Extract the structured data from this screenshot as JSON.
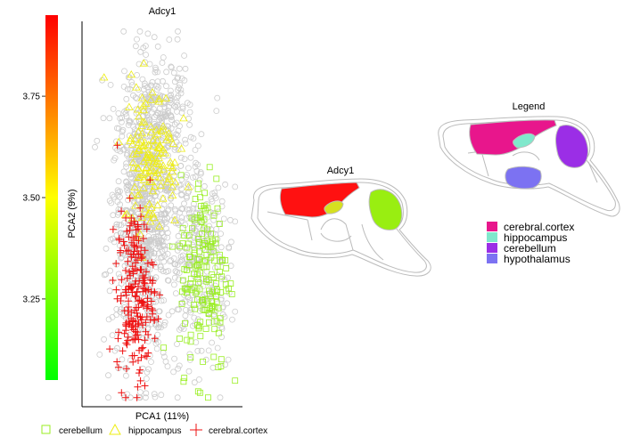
{
  "chart_data": [
    {
      "type": "scatter",
      "title": "Adcy1",
      "xlabel": "PCA1 (11%)",
      "ylabel": "PCA2 (9%)",
      "xlim": [
        -1,
        1
      ],
      "ylim": [
        3.03,
        3.95
      ],
      "y_ticks": [
        3.25,
        3.5,
        3.75
      ],
      "y_tick_labels": [
        "3.25",
        "3.50",
        "3.75"
      ],
      "color_scale": {
        "colors": [
          "#00ff00",
          "#ffff00",
          "#ff0000"
        ],
        "range": [
          3.05,
          3.95
        ]
      },
      "background_points": {
        "color": "#cccccc",
        "marker": "circle",
        "count": 1300
      },
      "series": [
        {
          "name": "cerebellum",
          "marker": "square",
          "color": "#99ee22",
          "clusters": [
            {
              "x_center": 0.55,
              "y_center": 3.35,
              "x_spread": 0.16,
              "y_spread": 0.12,
              "count": 170
            }
          ]
        },
        {
          "name": "hippocampus",
          "marker": "triangle",
          "color": "#eeee11",
          "clusters": [
            {
              "x_center": -0.15,
              "y_center": 3.63,
              "x_spread": 0.18,
              "y_spread": 0.09,
              "count": 140
            }
          ]
        },
        {
          "name": "cerebral.cortex",
          "marker": "plus",
          "color": "#ee1111",
          "clusters": [
            {
              "x_center": -0.35,
              "y_center": 3.3,
              "x_spread": 0.12,
              "y_spread": 0.1,
              "count": 210
            }
          ]
        }
      ]
    },
    {
      "type": "anatomical_map",
      "title": "Adcy1",
      "regions": [
        {
          "name": "cerebral.cortex",
          "color": "#ff1111"
        },
        {
          "name": "hippocampus",
          "color": "#d6e020"
        },
        {
          "name": "cerebellum",
          "color": "#99ee11"
        }
      ]
    },
    {
      "type": "anatomical_map",
      "title": "Legend",
      "regions": [
        {
          "name": "cerebral.cortex",
          "color": "#e8168c"
        },
        {
          "name": "hippocampus",
          "color": "#80e8cc"
        },
        {
          "name": "cerebellum",
          "color": "#9b2ee6"
        },
        {
          "name": "hypothalamus",
          "color": "#7c72f2"
        }
      ]
    }
  ]
}
